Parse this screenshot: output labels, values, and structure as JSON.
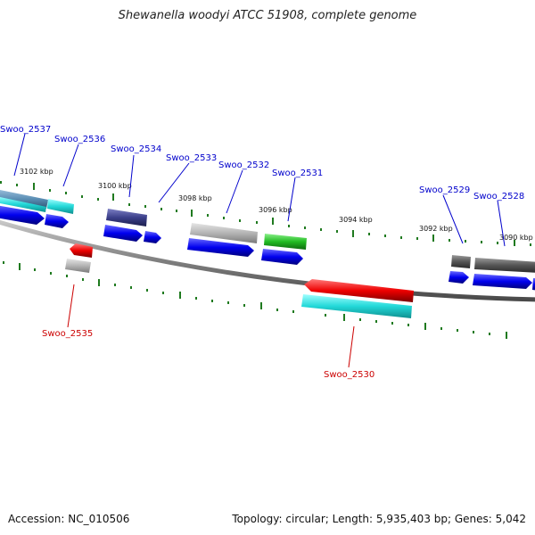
{
  "title": "Shewanella woodyi ATCC 51908, complete genome",
  "footer": {
    "accession": "Accession: NC_010506",
    "topology": "Topology: circular; Length: 5,935,403 bp; Genes: 5,042"
  },
  "colors": {
    "backbone": "#808080",
    "tick": "#1f7a1f",
    "label_forward": "#0000cc",
    "label_reverse": "#cc0000",
    "leader_forward": "#0000cc",
    "leader_reverse": "#cc0000"
  },
  "scale_labels": [
    {
      "text": "3102 kbp"
    },
    {
      "text": "3100 kbp"
    },
    {
      "text": "3098 kbp"
    },
    {
      "text": "3096 kbp"
    },
    {
      "text": "3094 kbp"
    },
    {
      "text": "3092 kbp"
    },
    {
      "text": "3090 kbp"
    }
  ],
  "gene_labels": [
    {
      "text": "Swoo_2537",
      "strand": "forward"
    },
    {
      "text": "Swoo_2536",
      "strand": "forward"
    },
    {
      "text": "Swoo_2534",
      "strand": "forward"
    },
    {
      "text": "Swoo_2533",
      "strand": "forward"
    },
    {
      "text": "Swoo_2532",
      "strand": "forward"
    },
    {
      "text": "Swoo_2531",
      "strand": "forward"
    },
    {
      "text": "Swoo_2529",
      "strand": "forward"
    },
    {
      "text": "Swoo_2528",
      "strand": "forward"
    },
    {
      "text": "Swoo_2535",
      "strand": "reverse"
    },
    {
      "text": "Swoo_2530",
      "strand": "reverse"
    }
  ],
  "feature_colors": {
    "cds_forward": "#0000ee",
    "cds_reverse": "#ee0000",
    "cog_steelblue": "#5b8fb5",
    "cog_cyan": "#22d8d8",
    "cog_slate": "#3b3f8a",
    "cog_gray": "#b4b4b4",
    "cog_green": "#22bb22",
    "cog_darkgray": "#555555"
  }
}
